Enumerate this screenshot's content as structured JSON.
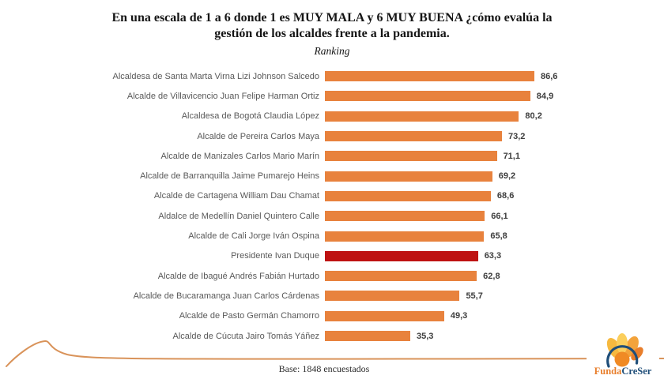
{
  "chart_data": {
    "type": "bar",
    "orientation": "horizontal",
    "title": "En una escala de 1 a 6 donde 1 es MUY MALA y 6 MUY BUENA ¿cómo evalúa la gestión de los alcaldes frente a la pandemia.",
    "subtitle": "Ranking",
    "categories": [
      "Alcaldesa de Santa Marta Virna Lizi Johnson Salcedo",
      "Alcalde de Villavicencio Juan Felipe Harman Ortiz",
      "Alcaldesa de Bogotá Claudia López",
      "Alcalde de Pereira Carlos Maya",
      "Alcalde de Manizales Carlos Mario Marín",
      "Alcalde de Barranquilla Jaime Pumarejo Heins",
      "Alcalde de Cartagena William Dau Chamat",
      "Aldalce de Medellín Daniel Quintero Calle",
      "Alcalde de Cali Jorge Iván Ospina",
      "Presidente Ivan Duque",
      "Alcalde de Ibagué Andrés Fabián Hurtado",
      "Alcalde de Bucaramanga Juan Carlos Cárdenas",
      "Alcalde de Pasto Germán Chamorro",
      "Alcalde de Cúcuta Jairo Tomás Yáñez"
    ],
    "values": [
      86.6,
      84.9,
      80.2,
      73.2,
      71.1,
      69.2,
      68.6,
      66.1,
      65.8,
      63.3,
      62.8,
      55.7,
      49.3,
      35.3
    ],
    "value_labels": [
      "86,6",
      "84,9",
      "80,2",
      "73,2",
      "71,1",
      "69,2",
      "68,6",
      "66,1",
      "65,8",
      "63,3",
      "62,8",
      "55,7",
      "49,3",
      "35,3"
    ],
    "highlight_index": 9,
    "bar_color": "#E8823D",
    "highlight_color": "#BE1212",
    "xlim": [
      0,
      100
    ],
    "grid": false,
    "legend": false,
    "base_note": "Base: 1848 encuestados"
  },
  "logo": {
    "text_primary": "Funda",
    "text_secondary": "CreSer"
  },
  "colors": {
    "accent_line": "#D9935A",
    "label_text": "#595959",
    "value_text": "#3D3D3D"
  }
}
